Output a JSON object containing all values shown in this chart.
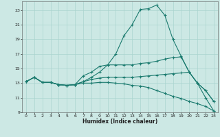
{
  "xlabel": "Humidex (Indice chaleur)",
  "bg_color": "#cce8e4",
  "grid_color": "#aad4cf",
  "line_color": "#1a7a6e",
  "xlim": [
    -0.5,
    23.5
  ],
  "ylim": [
    9,
    24.2
  ],
  "xticks": [
    0,
    1,
    2,
    3,
    4,
    5,
    6,
    7,
    8,
    9,
    10,
    11,
    12,
    13,
    14,
    15,
    16,
    17,
    18,
    19,
    20,
    21,
    22,
    23
  ],
  "yticks": [
    9,
    11,
    13,
    15,
    17,
    19,
    21,
    23
  ],
  "line1_x": [
    0,
    1,
    2,
    3,
    4,
    5,
    6,
    7,
    8,
    9,
    10,
    11,
    12,
    13,
    14,
    15,
    16,
    17,
    18,
    19,
    20,
    21,
    22,
    23
  ],
  "line1_y": [
    13.2,
    13.8,
    13.1,
    13.1,
    12.8,
    12.7,
    12.8,
    13.2,
    13.8,
    14.5,
    15.5,
    17.0,
    19.5,
    21.0,
    23.1,
    23.2,
    23.7,
    22.3,
    19.0,
    16.7,
    14.5,
    13.0,
    11.0,
    9.2
  ],
  "line2_x": [
    0,
    1,
    2,
    3,
    4,
    5,
    6,
    7,
    8,
    9,
    10,
    11,
    12,
    13,
    14,
    15,
    16,
    17,
    18,
    19,
    20,
    21,
    22,
    23
  ],
  "line2_y": [
    13.2,
    13.8,
    13.1,
    13.1,
    12.8,
    12.7,
    12.8,
    14.0,
    14.5,
    15.3,
    15.5,
    15.5,
    15.5,
    15.5,
    15.7,
    15.8,
    16.0,
    16.3,
    16.5,
    16.6,
    14.5,
    13.0,
    12.0,
    10.5
  ],
  "line3_x": [
    0,
    1,
    2,
    3,
    4,
    5,
    6,
    7,
    8,
    9,
    10,
    11,
    12,
    13,
    14,
    15,
    16,
    17,
    18,
    19,
    20,
    21,
    22,
    23
  ],
  "line3_y": [
    13.2,
    13.8,
    13.1,
    13.1,
    12.8,
    12.7,
    12.8,
    13.2,
    13.5,
    13.7,
    13.8,
    13.8,
    13.8,
    13.8,
    13.9,
    14.0,
    14.1,
    14.2,
    14.3,
    14.4,
    14.5,
    13.0,
    12.0,
    10.5
  ],
  "line4_x": [
    0,
    1,
    2,
    3,
    4,
    5,
    6,
    7,
    8,
    9,
    10,
    11,
    12,
    13,
    14,
    15,
    16,
    17,
    18,
    19,
    20,
    21,
    22,
    23
  ],
  "line4_y": [
    13.2,
    13.8,
    13.1,
    13.1,
    12.8,
    12.7,
    12.8,
    13.0,
    13.0,
    13.1,
    13.1,
    13.0,
    12.9,
    12.7,
    12.6,
    12.4,
    12.0,
    11.6,
    11.2,
    10.9,
    10.5,
    10.2,
    9.8,
    9.2
  ]
}
